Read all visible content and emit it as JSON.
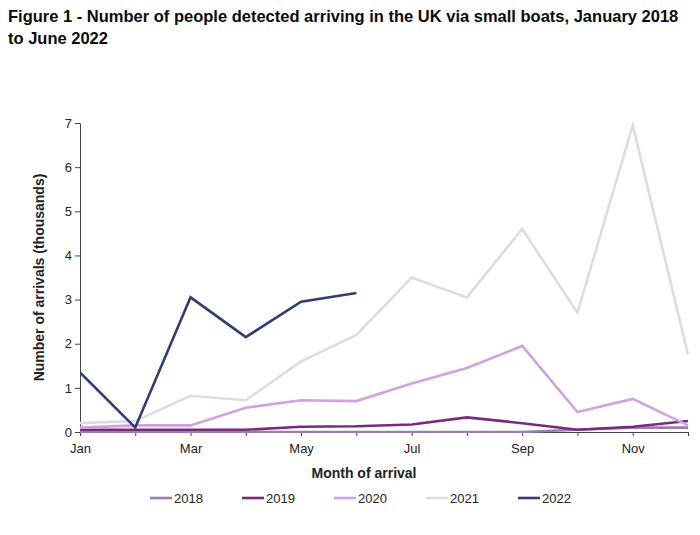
{
  "chart_data": {
    "type": "line",
    "title": "Figure 1 - Number of people detected arriving in the UK via small boats, January 2018 to June 2022",
    "x_label": "Month of arrival",
    "y_label": "Number of arrivals (thousands)",
    "categories": [
      "Jan",
      null,
      "Mar",
      null,
      "May",
      null,
      "Jul",
      null,
      "Sep",
      null,
      "Nov",
      null
    ],
    "series": [
      {
        "name": "2018",
        "color": "#9a7fae",
        "values": [
          0,
          0,
          0,
          0,
          0,
          0,
          0,
          0,
          0,
          0.05,
          0.1,
          0.1
        ]
      },
      {
        "name": "2019",
        "color": "#7a2a7e",
        "values": [
          0.05,
          0.05,
          0.05,
          0.05,
          0.12,
          0.13,
          0.17,
          0.33,
          0.2,
          0.05,
          0.12,
          0.25
        ]
      },
      {
        "name": "2020",
        "color": "#cfa3df",
        "values": [
          0.1,
          0.15,
          0.15,
          0.55,
          0.72,
          0.7,
          1.1,
          1.45,
          1.95,
          0.45,
          0.75,
          0.15
        ]
      },
      {
        "name": "2021",
        "color": "#dcdce4",
        "values": [
          0.2,
          0.25,
          0.82,
          0.72,
          1.6,
          2.2,
          3.5,
          3.05,
          4.6,
          2.7,
          6.95,
          1.75
        ]
      },
      {
        "name": "2022",
        "color": "#2f3f6f",
        "values": [
          1.35,
          0.1,
          3.05,
          2.15,
          2.95,
          3.15,
          null,
          null,
          null,
          null,
          null,
          null
        ]
      }
    ],
    "ylim": [
      0,
      7
    ],
    "yticks": [
      0,
      1,
      2,
      3,
      4,
      5,
      6,
      7
    ],
    "grid": false,
    "legend": "bottom"
  }
}
